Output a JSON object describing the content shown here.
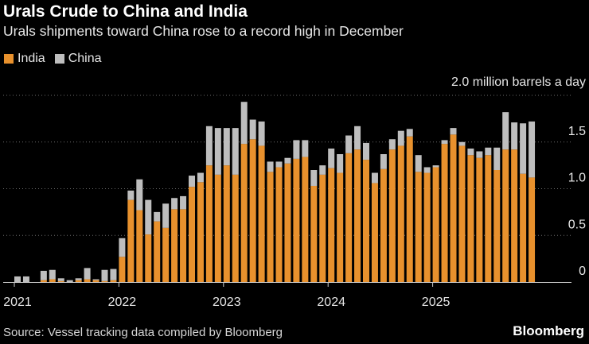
{
  "title": "Urals Crude to China and India",
  "subtitle": "Urals shipments toward China rose to a record high in December",
  "source": "Source: Vessel tracking data compiled by Bloomberg",
  "brand": "Bloomberg",
  "colors": {
    "india": "#e8912d",
    "china": "#bebebe",
    "grid": "#6b6b6b",
    "axis": "#cccccc",
    "background": "#000000"
  },
  "chart_data": {
    "type": "bar",
    "stacked": true,
    "title": "Urals Crude to China and India",
    "subtitle": "Urals shipments toward China rose to a record high in December",
    "unit_label": "2.0 million barrels a day",
    "ylabel": "million barrels a day",
    "ylim": [
      0,
      2.0
    ],
    "yticks": [
      0,
      0.5,
      1.0,
      1.5
    ],
    "ytick_labels": [
      "0",
      "0.5",
      "1.0",
      "1.5"
    ],
    "xticks": [
      {
        "label": "2021",
        "index": 0
      },
      {
        "label": "2022",
        "index": 12
      },
      {
        "label": "2023",
        "index": 24
      },
      {
        "label": "2024",
        "index": 36
      },
      {
        "label": "2025",
        "index": 48
      }
    ],
    "categories": [
      "2021-01",
      "2021-02",
      "2021-03",
      "2021-04",
      "2021-05",
      "2021-06",
      "2021-07",
      "2021-08",
      "2021-09",
      "2021-10",
      "2021-11",
      "2021-12",
      "2022-01",
      "2022-02",
      "2022-03",
      "2022-04",
      "2022-05",
      "2022-06",
      "2022-07",
      "2022-08",
      "2022-09",
      "2022-10",
      "2022-11",
      "2022-12",
      "2023-01",
      "2023-02",
      "2023-03",
      "2023-04",
      "2023-05",
      "2023-06",
      "2023-07",
      "2023-08",
      "2023-09",
      "2023-10",
      "2023-11",
      "2023-12",
      "2024-01",
      "2024-02",
      "2024-03",
      "2024-04",
      "2024-05",
      "2024-06",
      "2024-07",
      "2024-08",
      "2024-09",
      "2024-10",
      "2024-11",
      "2024-12",
      "2025-01",
      "2025-02",
      "2025-03",
      "2025-04",
      "2025-05",
      "2025-06",
      "2025-07",
      "2025-08",
      "2025-09",
      "2025-10",
      "2025-11",
      "2025-12"
    ],
    "legend_position": "top-left",
    "series": [
      {
        "name": "India",
        "values": [
          0.0,
          0.0,
          0.0,
          0.02,
          0.03,
          0.01,
          0.0,
          0.02,
          0.03,
          0.02,
          0.01,
          0.02,
          0.27,
          0.88,
          0.77,
          0.51,
          0.65,
          0.58,
          0.78,
          0.78,
          1.02,
          1.07,
          1.25,
          1.15,
          1.25,
          1.15,
          1.48,
          1.53,
          1.46,
          1.18,
          1.23,
          1.27,
          1.32,
          1.34,
          1.03,
          1.15,
          1.22,
          1.17,
          1.38,
          1.42,
          1.31,
          1.06,
          1.21,
          1.42,
          1.46,
          1.56,
          1.18,
          1.17,
          1.23,
          1.48,
          1.58,
          1.46,
          1.36,
          1.33,
          1.36,
          1.2,
          1.42,
          1.42,
          1.16,
          1.12
        ]
      },
      {
        "name": "China",
        "values": [
          0.06,
          0.06,
          0.0,
          0.1,
          0.1,
          0.03,
          0.02,
          0.02,
          0.12,
          0.01,
          0.12,
          0.12,
          0.2,
          0.1,
          0.33,
          0.37,
          0.1,
          0.26,
          0.12,
          0.14,
          0.12,
          0.1,
          0.42,
          0.5,
          0.4,
          0.5,
          0.45,
          0.21,
          0.26,
          0.11,
          0.06,
          0.06,
          0.2,
          0.18,
          0.17,
          0.1,
          0.21,
          0.2,
          0.19,
          0.25,
          0.18,
          0.11,
          0.16,
          0.11,
          0.16,
          0.08,
          0.18,
          0.06,
          0.02,
          0.04,
          0.07,
          0.04,
          0.07,
          0.07,
          0.08,
          0.24,
          0.4,
          0.29,
          0.54,
          0.6
        ]
      }
    ]
  }
}
